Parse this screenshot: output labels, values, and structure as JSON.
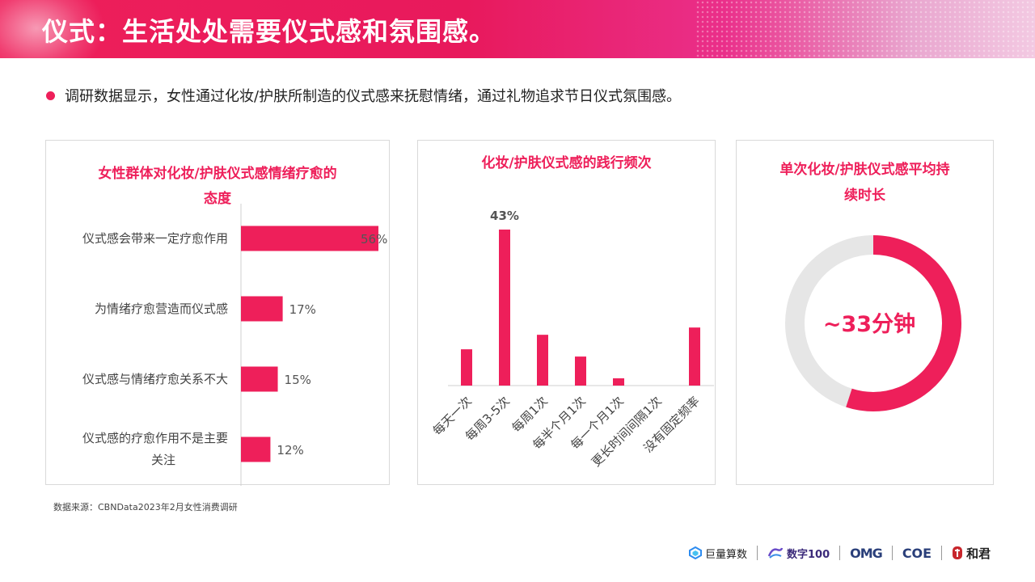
{
  "header": {
    "title": "仪式：生活处处需要仪式感和氛围感。"
  },
  "bullet": {
    "text": "调研数据显示，女性通过化妆/护肤所制造的仪式感来抚慰情绪，通过礼物追求节日仪式氛围感。"
  },
  "colors": {
    "accent": "#ee1f5a",
    "track": "#e6e6e6"
  },
  "panel1": {
    "title_line1": "女性群体对化妆/护肤仪式感情绪疗愈的",
    "title_line2": "态度"
  },
  "panel2": {
    "title": "化妆/护肤仪式感的践行频次"
  },
  "panel3": {
    "title_line1": "单次化妆/护肤仪式感平均持",
    "title_line2": "续时长",
    "center_label": "~33分钟"
  },
  "chart_data": [
    {
      "type": "bar",
      "orientation": "horizontal",
      "categories": [
        [
          "仪式感会带来一定疗愈作用"
        ],
        [
          "为情绪疗愈营造而仪式感"
        ],
        [
          "仪式感与情绪疗愈关系不大"
        ],
        [
          "仪式感的疗愈作用不是主要",
          "关注"
        ]
      ],
      "values": [
        56,
        17,
        15,
        12
      ],
      "value_labels": [
        "56%",
        "17%",
        "15%",
        "12%"
      ],
      "xlim": [
        0,
        56
      ]
    },
    {
      "type": "bar",
      "categories": [
        "每天一次",
        "每周3-5次",
        "每周1次",
        "每半个月1次",
        "每一个月1次",
        "更长时间间隔1次",
        "没有固定频率"
      ],
      "values": [
        10,
        43,
        14,
        8,
        2,
        0,
        16
      ],
      "value_labels": [
        "",
        "43%",
        "",
        "",
        "",
        "",
        ""
      ],
      "ylim": [
        0,
        43
      ]
    },
    {
      "type": "pie",
      "style": "donut",
      "values": [
        55,
        45
      ],
      "label": "~33分钟"
    }
  ],
  "source": {
    "text": "数据来源：CBNData2023年2月女性消费调研"
  },
  "logos": {
    "juliang": "巨量算数",
    "shuzi": "数字100",
    "omg": "OMG",
    "coe": "COE",
    "hejun": "和君"
  }
}
